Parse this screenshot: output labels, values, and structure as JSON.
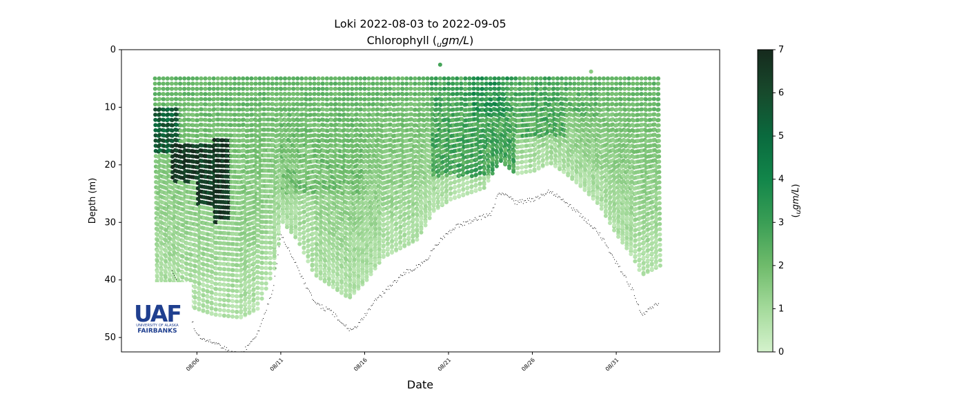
{
  "chart_data": {
    "type": "scatter",
    "title": "Loki 2022-08-03 to 2022-09-05",
    "subtitle_prefix": "Chlorophyll (",
    "subtitle_unit_sub": "u",
    "subtitle_unit": "gm/L",
    "subtitle_suffix": ")",
    "xlabel": "Date",
    "ylabel": "Depth (m)",
    "colorbar_label_prefix": "(",
    "colorbar_label_sub": "u",
    "colorbar_label_unit": "gm/L",
    "colorbar_label_suffix": ")",
    "x_tick_labels": [
      "08/06",
      "08/11",
      "08/16",
      "08/21",
      "08/26",
      "08/31"
    ],
    "x_tick_dates": [
      "2022-08-06",
      "2022-08-11",
      "2022-08-16",
      "2022-08-21",
      "2022-08-26",
      "2022-08-31"
    ],
    "y_ticks": [
      0,
      10,
      20,
      30,
      40,
      50
    ],
    "y_inverted": true,
    "ylim": [
      0,
      52.5
    ],
    "xlim": [
      "2022-08-01T12:00",
      "2022-09-06T04:00"
    ],
    "clim": [
      0,
      7
    ],
    "colorbar_ticks": [
      0,
      1,
      2,
      3,
      4,
      5,
      6,
      7
    ],
    "colormap": [
      "#d4f2cc",
      "#a4da9b",
      "#6fbb6b",
      "#3a9e55",
      "#12864a",
      "#0a6a3e",
      "#174a2c",
      "#162a1d"
    ],
    "grid": false,
    "profile_min_depth": 5,
    "seafloor_depth_series": [
      {
        "date": "2022-08-04T12:00",
        "depth": 38
      },
      {
        "date": "2022-08-06T00:00",
        "depth": 49.5
      },
      {
        "date": "2022-08-07T00:00",
        "depth": 51
      },
      {
        "date": "2022-08-08T12:00",
        "depth": 53
      },
      {
        "date": "2022-08-09T12:00",
        "depth": 50
      },
      {
        "date": "2022-08-10T12:00",
        "depth": 42
      },
      {
        "date": "2022-08-11T00:00",
        "depth": 32
      },
      {
        "date": "2022-08-12T00:00",
        "depth": 38
      },
      {
        "date": "2022-08-13T00:00",
        "depth": 44
      },
      {
        "date": "2022-08-14T00:00",
        "depth": 45.5
      },
      {
        "date": "2022-08-15T00:00",
        "depth": 48.5
      },
      {
        "date": "2022-08-15T12:00",
        "depth": 48
      },
      {
        "date": "2022-08-16T12:00",
        "depth": 44
      },
      {
        "date": "2022-08-17T12:00",
        "depth": 41
      },
      {
        "date": "2022-08-18T12:00",
        "depth": 38.5
      },
      {
        "date": "2022-08-19T12:00",
        "depth": 37
      },
      {
        "date": "2022-08-20T12:00",
        "depth": 33
      },
      {
        "date": "2022-08-21T12:00",
        "depth": 30.5
      },
      {
        "date": "2022-08-22T12:00",
        "depth": 29.5
      },
      {
        "date": "2022-08-23T12:00",
        "depth": 28.5
      },
      {
        "date": "2022-08-24T00:00",
        "depth": 24.5
      },
      {
        "date": "2022-08-25T00:00",
        "depth": 26.5
      },
      {
        "date": "2022-08-26T00:00",
        "depth": 26
      },
      {
        "date": "2022-08-27T00:00",
        "depth": 24.5
      },
      {
        "date": "2022-08-28T00:00",
        "depth": 26.5
      },
      {
        "date": "2022-08-29T00:00",
        "depth": 29
      },
      {
        "date": "2022-08-30T00:00",
        "depth": 32
      },
      {
        "date": "2022-08-31T00:00",
        "depth": 37
      },
      {
        "date": "2022-09-01T00:00",
        "depth": 42
      },
      {
        "date": "2022-09-01T12:00",
        "depth": 46
      },
      {
        "date": "2022-09-02T12:00",
        "depth": 44
      }
    ],
    "chlorophyll_bottom_series": [
      {
        "date": "2022-08-03T12:00",
        "depth": 41
      },
      {
        "date": "2022-08-05T00:00",
        "depth": 44
      },
      {
        "date": "2022-08-07T00:00",
        "depth": 46
      },
      {
        "date": "2022-08-08T12:00",
        "depth": 46.5
      },
      {
        "date": "2022-08-09T12:00",
        "depth": 45
      },
      {
        "date": "2022-08-10T12:00",
        "depth": 38
      },
      {
        "date": "2022-08-11T00:00",
        "depth": 29.5
      },
      {
        "date": "2022-08-12T00:00",
        "depth": 33
      },
      {
        "date": "2022-08-13T00:00",
        "depth": 39
      },
      {
        "date": "2022-08-14T00:00",
        "depth": 41
      },
      {
        "date": "2022-08-15T00:00",
        "depth": 43
      },
      {
        "date": "2022-08-16T00:00",
        "depth": 40
      },
      {
        "date": "2022-08-17T00:00",
        "depth": 36
      },
      {
        "date": "2022-08-18T00:00",
        "depth": 34.5
      },
      {
        "date": "2022-08-19T00:00",
        "depth": 33
      },
      {
        "date": "2022-08-20T00:00",
        "depth": 28
      },
      {
        "date": "2022-08-21T00:00",
        "depth": 26
      },
      {
        "date": "2022-08-22T00:00",
        "depth": 25
      },
      {
        "date": "2022-08-23T00:00",
        "depth": 24
      },
      {
        "date": "2022-08-24T00:00",
        "depth": 19
      },
      {
        "date": "2022-08-25T00:00",
        "depth": 21.5
      },
      {
        "date": "2022-08-26T00:00",
        "depth": 21
      },
      {
        "date": "2022-08-27T00:00",
        "depth": 19.5
      },
      {
        "date": "2022-08-28T00:00",
        "depth": 21.5
      },
      {
        "date": "2022-08-29T00:00",
        "depth": 24
      },
      {
        "date": "2022-08-30T00:00",
        "depth": 27
      },
      {
        "date": "2022-08-31T00:00",
        "depth": 32
      },
      {
        "date": "2022-09-01T00:00",
        "depth": 36
      },
      {
        "date": "2022-09-01T12:00",
        "depth": 39
      },
      {
        "date": "2022-09-02T12:00",
        "depth": 37.5
      }
    ],
    "chlorophyll_regions": [
      {
        "start": "2022-08-03T12:00",
        "end": "2022-08-05T00:00",
        "depth_top": 10,
        "depth_bottom": 18,
        "value": 5.5
      },
      {
        "start": "2022-08-04T12:00",
        "end": "2022-08-06T00:00",
        "depth_top": 16,
        "depth_bottom": 23,
        "value": 6.8
      },
      {
        "start": "2022-08-06T00:00",
        "end": "2022-08-07T00:00",
        "depth_top": 16,
        "depth_bottom": 27,
        "value": 6.5
      },
      {
        "start": "2022-08-07T00:00",
        "end": "2022-08-08T00:00",
        "depth_top": 15,
        "depth_bottom": 30,
        "value": 6.8
      },
      {
        "start": "2022-08-11T00:00",
        "end": "2022-08-16T00:00",
        "depth_top": 5,
        "depth_bottom": 25,
        "value": 1.8
      },
      {
        "start": "2022-08-20T00:00",
        "end": "2022-08-25T00:00",
        "depth_top": 5,
        "depth_bottom": 22,
        "value": 2.8
      },
      {
        "start": "2022-08-22T12:00",
        "end": "2022-08-24T12:00",
        "depth_top": 5,
        "depth_bottom": 12,
        "value": 3.5
      },
      {
        "start": "2022-08-25T00:00",
        "end": "2022-08-28T00:00",
        "depth_top": 5,
        "depth_bottom": 15,
        "value": 2.6
      },
      {
        "start": "2022-08-28T00:00",
        "end": "2022-08-30T00:00",
        "depth_top": 5,
        "depth_bottom": 12,
        "value": 2.2
      }
    ],
    "outlier_points": [
      {
        "date": "2022-08-20T12:00",
        "depth": 2.6,
        "value": 2.8
      },
      {
        "date": "2022-08-29T12:00",
        "depth": 3.8,
        "value": 1.5
      }
    ]
  },
  "logo": {
    "icon": "uaf-logo",
    "letters": "UAF",
    "line1": "UNIVERSITY OF ALASKA",
    "line2": "FAIRBANKS",
    "color": "#1f3f8f"
  }
}
